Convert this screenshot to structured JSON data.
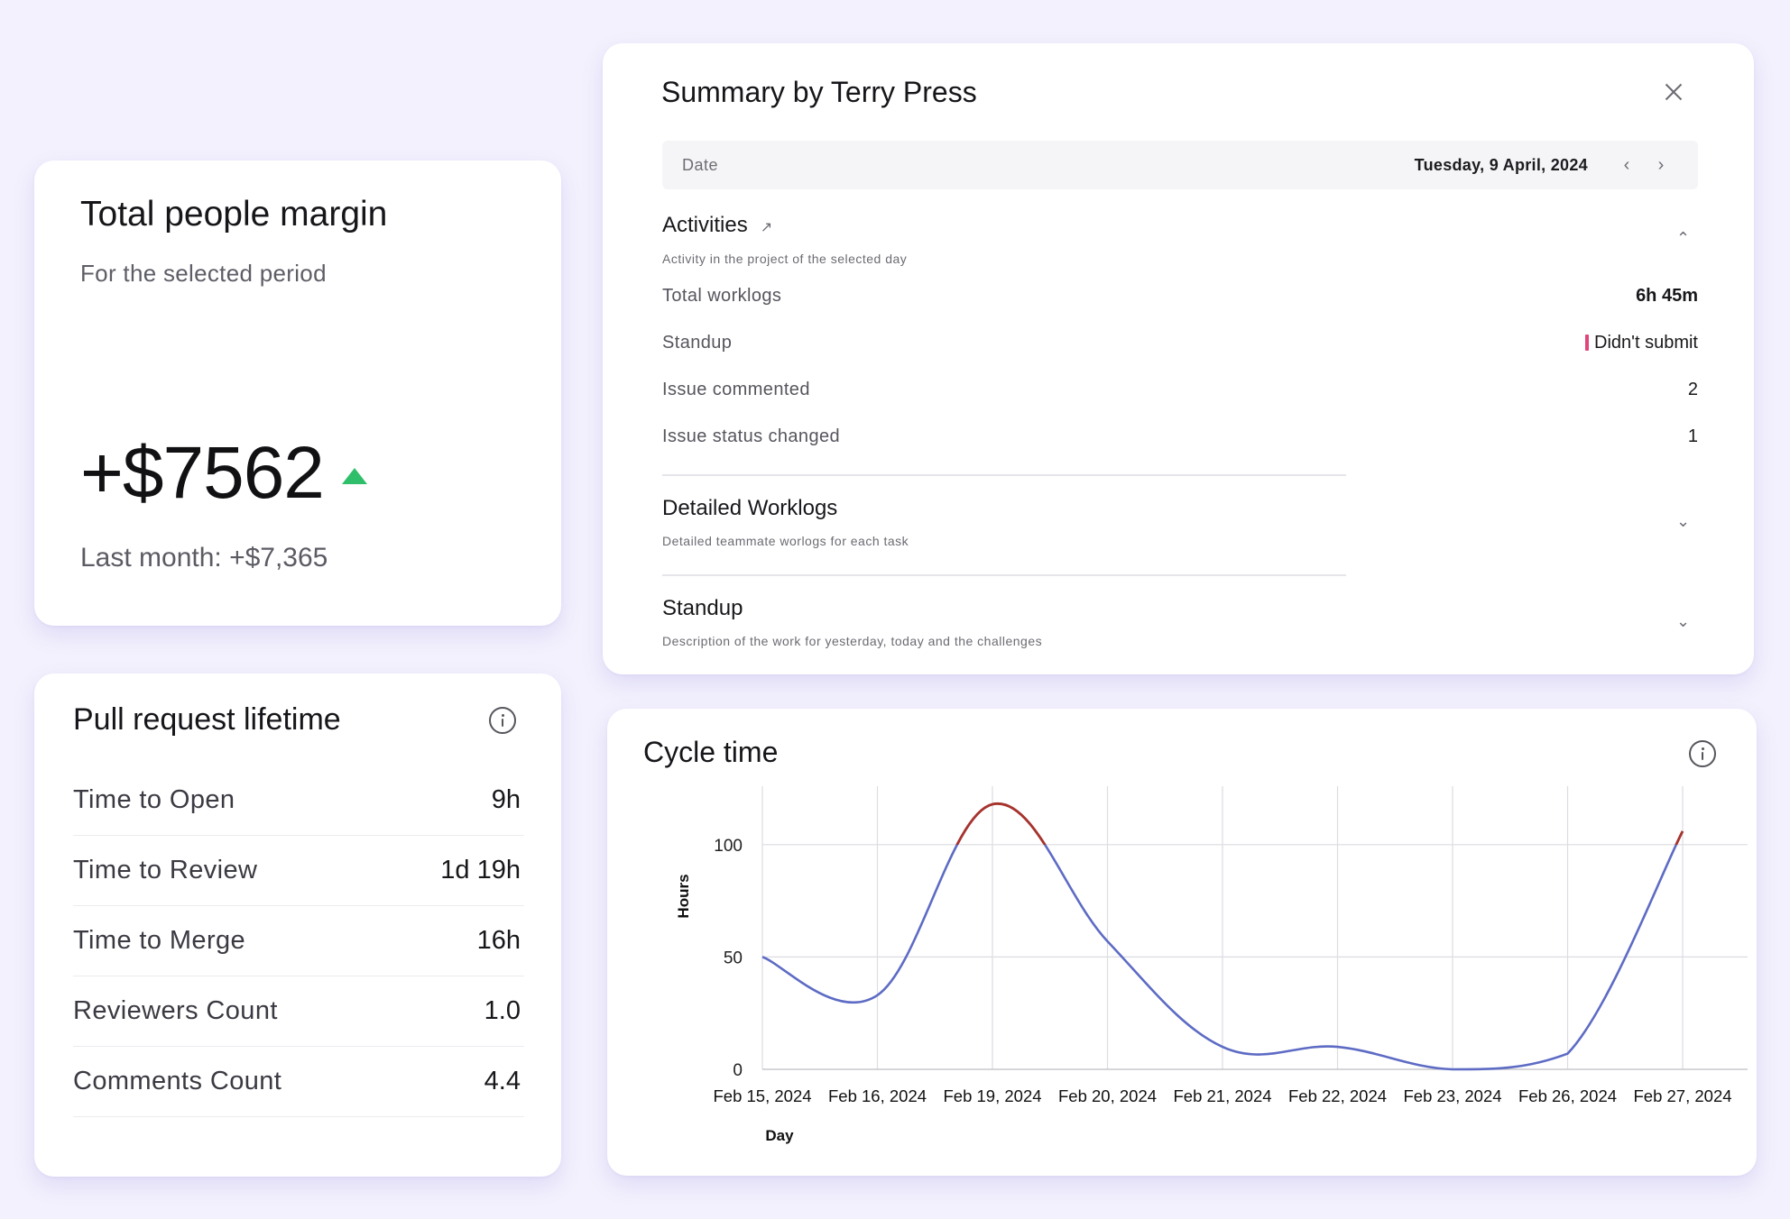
{
  "margin_card": {
    "title": "Total people margin",
    "subtitle": "For the selected period",
    "value": "+$7562",
    "trend_icon": "triangle-up-icon",
    "trend_color": "#2fbf6a",
    "last_month": "Last month: +$7,365"
  },
  "pr_card": {
    "title": "Pull request lifetime",
    "rows": [
      {
        "label": "Time to Open",
        "value": "9h"
      },
      {
        "label": "Time to Review",
        "value": "1d 19h"
      },
      {
        "label": "Time to Merge",
        "value": "16h"
      },
      {
        "label": "Reviewers Count",
        "value": "1.0"
      },
      {
        "label": "Comments Count",
        "value": "4.4"
      }
    ]
  },
  "summary_card": {
    "title": "Summary by Terry Press",
    "date_label": "Date",
    "date_value": "Tuesday, 9 April, 2024",
    "prev_icon": "‹",
    "next_icon": "›",
    "activities": {
      "title": "Activities",
      "subtitle": "Activity in the project of the selected day",
      "rows": [
        {
          "label": "Total worklogs",
          "value": "6h 45m"
        },
        {
          "label": "Standup",
          "value": "Didn't submit"
        },
        {
          "label": "Issue commented",
          "value": "2"
        },
        {
          "label": "Issue status changed",
          "value": "1"
        }
      ]
    },
    "detailed_worklogs": {
      "title": "Detailed Worklogs",
      "subtitle": "Detailed teammate worlogs for each task"
    },
    "standup": {
      "title": "Standup",
      "subtitle": "Description of the work for yesterday, today and the challenges"
    },
    "badge_color": "#e04679"
  },
  "cycle_card": {
    "title": "Cycle time"
  },
  "chart_data": {
    "type": "line",
    "title": "Cycle time",
    "xlabel": "Day",
    "ylabel": "Hours",
    "categories": [
      "Feb 15, 2024",
      "Feb 16, 2024",
      "Feb 19, 2024",
      "Feb 20, 2024",
      "Feb 21, 2024",
      "Feb 22, 2024",
      "Feb 23, 2024",
      "Feb 26, 2024",
      "Feb 27, 2024"
    ],
    "series": [
      {
        "values": [
          50,
          33,
          118,
          57,
          10,
          10,
          0,
          7,
          106
        ]
      }
    ],
    "y_ticks": [
      0,
      50,
      100
    ],
    "ylim": [
      0,
      122
    ],
    "grid": true,
    "line_color": "#5d6bc4",
    "highlight_color": "#a8332c",
    "highlight_threshold": 100
  }
}
